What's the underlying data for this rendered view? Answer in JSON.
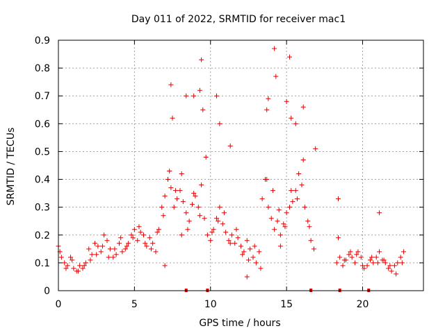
{
  "chart_data": {
    "type": "scatter",
    "title": "Day 011 of 2022, SRMTID for receiver mac1",
    "xlabel": "GPS time / hours",
    "ylabel": "SRMTID / TECUs",
    "xlim": [
      0,
      24
    ],
    "ylim": [
      0,
      0.9
    ],
    "xticks": [
      0,
      5,
      10,
      15,
      20
    ],
    "xtick_labels": [
      "0",
      "5",
      "10",
      "15",
      "20"
    ],
    "yticks": [
      0,
      0.1,
      0.2,
      0.3,
      0.4,
      0.5,
      0.6,
      0.7,
      0.8,
      0.9
    ],
    "ytick_labels": [
      "0",
      "0.1",
      "0.2",
      "0.3",
      "0.4",
      "0.5",
      "0.6",
      "0.7",
      "0.8",
      "0.9"
    ],
    "grid": true,
    "marker": "+",
    "color": "#e00000",
    "data_gaps_hours": [
      [
        16.9,
        18.2
      ],
      [
        20.3,
        20.4
      ]
    ],
    "flag_markers_x": [
      8.4,
      9.8,
      16.6,
      18.5,
      20.4
    ],
    "series": [
      {
        "name": "mac1",
        "x": [
          0.0,
          0.2,
          0.4,
          0.6,
          0.8,
          1.0,
          1.2,
          1.4,
          1.6,
          1.8,
          2.0,
          2.2,
          2.4,
          2.6,
          2.8,
          3.0,
          3.2,
          3.4,
          3.6,
          3.8,
          4.0,
          4.2,
          4.4,
          4.6,
          4.8,
          5.0,
          5.2,
          5.4,
          5.6,
          5.8,
          6.0,
          6.2,
          6.4,
          6.6,
          6.8,
          7.0,
          7.2,
          7.4,
          7.6,
          7.8,
          8.0,
          8.2,
          8.4,
          8.6,
          8.8,
          9.0,
          9.2,
          9.4,
          9.6,
          9.8,
          10.0,
          10.2,
          10.4,
          10.6,
          10.8,
          11.0,
          11.2,
          11.4,
          11.6,
          11.8,
          12.0,
          12.2,
          12.4,
          12.6,
          12.8,
          13.0,
          13.2,
          13.4,
          13.6,
          13.8,
          14.0,
          14.2,
          14.4,
          14.6,
          14.8,
          15.0,
          15.2,
          15.4,
          15.6,
          15.8,
          16.0,
          16.2,
          16.4,
          16.6,
          16.8,
          18.3,
          18.5,
          18.7,
          18.9,
          19.1,
          19.3,
          19.5,
          19.7,
          19.9,
          20.1,
          20.3,
          20.5,
          20.7,
          20.9,
          21.1,
          21.3,
          21.5,
          21.7,
          21.9,
          22.1,
          22.3,
          22.5,
          22.7,
          0.1,
          0.5,
          0.9,
          1.3,
          1.7,
          2.1,
          2.5,
          2.9,
          3.3,
          3.7,
          4.1,
          4.5,
          4.9,
          5.3,
          5.7,
          6.1,
          6.5,
          6.9,
          7.3,
          7.7,
          8.1,
          8.5,
          8.9,
          9.3,
          9.7,
          10.1,
          10.5,
          10.9,
          11.3,
          11.7,
          12.1,
          12.5,
          12.9,
          13.3,
          13.7,
          14.1,
          14.5,
          14.9,
          15.3,
          15.7,
          16.1,
          16.5,
          18.4,
          18.8,
          19.2,
          19.6,
          20.0,
          20.6,
          21.0,
          21.4,
          21.8,
          22.2,
          22.6,
          7.4,
          7.5,
          8.4,
          8.9,
          9.3,
          9.4,
          9.5,
          10.4,
          10.6,
          14.2,
          14.3,
          15.0,
          15.2,
          15.3,
          15.6,
          16.1,
          13.7,
          13.8,
          16.9,
          18.4,
          21.1,
          7.0,
          8.1,
          11.3,
          12.4,
          14.6
        ],
        "y": [
          0.16,
          0.12,
          0.1,
          0.09,
          0.12,
          0.08,
          0.07,
          0.09,
          0.08,
          0.1,
          0.15,
          0.13,
          0.17,
          0.16,
          0.14,
          0.2,
          0.18,
          0.15,
          0.12,
          0.13,
          0.17,
          0.14,
          0.15,
          0.17,
          0.2,
          0.22,
          0.18,
          0.21,
          0.2,
          0.16,
          0.19,
          0.17,
          0.14,
          0.22,
          0.3,
          0.34,
          0.4,
          0.37,
          0.3,
          0.33,
          0.36,
          0.32,
          0.28,
          0.25,
          0.31,
          0.34,
          0.3,
          0.38,
          0.26,
          0.2,
          0.18,
          0.22,
          0.26,
          0.3,
          0.24,
          0.21,
          0.18,
          0.2,
          0.17,
          0.19,
          0.16,
          0.14,
          0.18,
          0.15,
          0.12,
          0.1,
          0.14,
          0.33,
          0.4,
          0.3,
          0.26,
          0.22,
          0.25,
          0.2,
          0.24,
          0.28,
          0.3,
          0.32,
          0.36,
          0.42,
          0.38,
          0.3,
          0.25,
          0.18,
          0.15,
          0.1,
          0.12,
          0.09,
          0.11,
          0.13,
          0.12,
          0.1,
          0.14,
          0.12,
          0.08,
          0.09,
          0.11,
          0.1,
          0.12,
          0.14,
          0.11,
          0.1,
          0.08,
          0.07,
          0.09,
          0.1,
          0.12,
          0.14,
          0.14,
          0.08,
          0.11,
          0.07,
          0.09,
          0.11,
          0.13,
          0.16,
          0.12,
          0.15,
          0.19,
          0.16,
          0.19,
          0.23,
          0.17,
          0.15,
          0.21,
          0.27,
          0.43,
          0.36,
          0.42,
          0.22,
          0.35,
          0.27,
          0.48,
          0.21,
          0.25,
          0.28,
          0.17,
          0.22,
          0.13,
          0.11,
          0.16,
          0.08,
          0.4,
          0.36,
          0.29,
          0.23,
          0.36,
          0.33,
          0.47,
          0.23,
          0.19,
          0.11,
          0.14,
          0.13,
          0.09,
          0.12,
          0.1,
          0.11,
          0.09,
          0.06,
          0.1,
          0.74,
          0.62,
          0.7,
          0.7,
          0.72,
          0.83,
          0.65,
          0.7,
          0.6,
          0.87,
          0.77,
          0.68,
          0.84,
          0.62,
          0.6,
          0.66,
          0.65,
          0.69,
          0.51,
          0.33,
          0.28,
          0.09,
          0.2,
          0.52,
          0.05,
          0.16
        ]
      }
    ]
  }
}
